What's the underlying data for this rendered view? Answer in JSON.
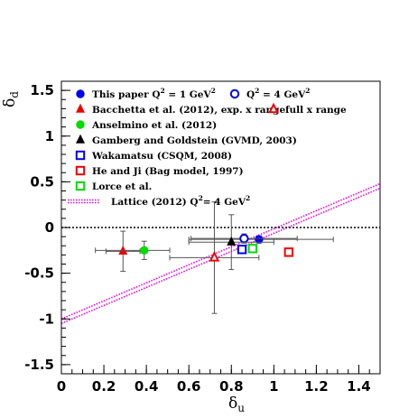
{
  "chart_data": {
    "type": "scatter",
    "xlabel": "δ_u",
    "ylabel": "δ_d",
    "xlim": [
      0,
      1.5
    ],
    "ylim": [
      -1.6,
      1.6
    ],
    "x_ticks": [
      0,
      0.2,
      0.4,
      0.6,
      0.8,
      1,
      1.2,
      1.4
    ],
    "x_tick_labels": [
      "0",
      "0.2",
      "0.4",
      "0.6",
      "0.8",
      "1",
      "1.2",
      "1.4"
    ],
    "y_ticks": [
      -1.5,
      -1,
      -0.5,
      0,
      0.5,
      1,
      1.5
    ],
    "y_tick_labels": [
      "-1.5",
      "-1",
      "-0.5",
      "0",
      "0.5",
      "1",
      "1.5"
    ],
    "zero_line": true,
    "legend_placement": "top",
    "series": [
      {
        "name": "This paper Q² = 1 GeV²",
        "marker": "circle-filled",
        "color": "#0000ee",
        "points": [
          {
            "x": 0.93,
            "y": -0.13,
            "xerr": [
              0.33,
              0.35
            ],
            "yerr": [
              0.04,
              0.04
            ]
          }
        ]
      },
      {
        "name": "Q² = 4 GeV²",
        "marker": "circle-open",
        "color": "#0000ee",
        "points": [
          {
            "x": 0.86,
            "y": -0.12,
            "xerr": [
              0.25,
              0.25
            ],
            "yerr": [
              0.05,
              0.05
            ]
          }
        ]
      },
      {
        "name": "Bacchetta et al. (2012), exp. x range",
        "marker": "triangle-filled",
        "color": "#ee0000",
        "points": [
          {
            "x": 0.29,
            "y": -0.26,
            "xerr": [
              0.08,
              0.08
            ],
            "yerr": [
              0.22,
              0.22
            ]
          }
        ]
      },
      {
        "name": "full x range",
        "marker": "triangle-open",
        "color": "#ee0000",
        "points": [
          {
            "x": 0.72,
            "y": -0.33,
            "xerr": [
              0.21,
              0.21
            ],
            "yerr": [
              0.61,
              0.61
            ]
          }
        ]
      },
      {
        "name": "Anselmino et al. (2012)",
        "marker": "circle-filled",
        "color": "#00dd00",
        "points": [
          {
            "x": 0.39,
            "y": -0.25,
            "xerr": [
              0.23,
              0.12
            ],
            "yerr": [
              0.1,
              0.1
            ]
          }
        ]
      },
      {
        "name": "Gamberg and Goldstein (GVMD, 2003)",
        "marker": "triangle-filled",
        "color": "#000000",
        "points": [
          {
            "x": 0.8,
            "y": -0.16,
            "xerr": [
              0.2,
              0.2
            ],
            "yerr": [
              0.3,
              0.3
            ]
          }
        ]
      },
      {
        "name": "Wakamatsu (CSQM, 2008)",
        "marker": "square-open",
        "color": "#0000ee",
        "points": [
          {
            "x": 0.85,
            "y": -0.24
          }
        ]
      },
      {
        "name": "He and Ji (Bag model, 1997)",
        "marker": "square-open",
        "color": "#ee0000",
        "points": [
          {
            "x": 1.07,
            "y": -0.27
          }
        ]
      },
      {
        "name": "Lorce et al.",
        "marker": "square-open",
        "color": "#00dd00",
        "points": [
          {
            "x": 0.9,
            "y": -0.23
          }
        ]
      },
      {
        "name": "Lattice (2012) Q²= 4 GeV²",
        "marker": "band-dotted",
        "color": "#ee00ee",
        "band": {
          "x": [
            0,
            1.5
          ],
          "upper": [
            -1.0,
            0.48
          ],
          "lower": [
            -1.05,
            0.43
          ]
        }
      }
    ]
  },
  "legend": [
    {
      "series": 0,
      "label_pre": "This paper Q",
      "sup": "2",
      "label_mid": " = 1 GeV",
      "sup2": "2"
    },
    {
      "series": 1,
      "label_pre": "Q",
      "sup": "2",
      "label_mid": " = 4 GeV",
      "sup2": "2"
    },
    {
      "series": 2,
      "label_pre": "Bacchetta et al. (2012), exp. x range"
    },
    {
      "series": 3,
      "label_pre": "full x range"
    },
    {
      "series": 4,
      "label_pre": "Anselmino et al. (2012)"
    },
    {
      "series": 5,
      "label_pre": "Gamberg and Goldstein (GVMD, 2003)"
    },
    {
      "series": 6,
      "label_pre": "Wakamatsu (CSQM, 2008)"
    },
    {
      "series": 7,
      "label_pre": "He and Ji (Bag model, 1997)"
    },
    {
      "series": 8,
      "label_pre": "Lorce et al."
    },
    {
      "series": 9,
      "label_pre": "Lattice (2012) Q",
      "sup": "2",
      "label_mid": "= 4 GeV",
      "sup2": "2"
    }
  ],
  "axis_titles": {
    "x_main": "δ",
    "x_sub": "u",
    "y_main": "δ",
    "y_sub": "d"
  }
}
